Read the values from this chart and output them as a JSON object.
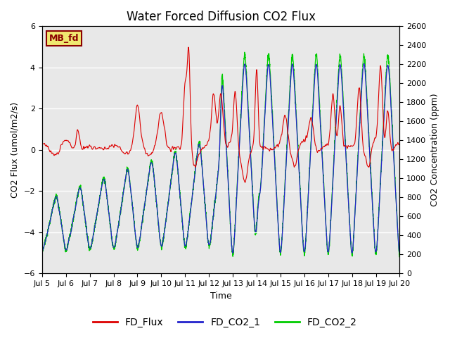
{
  "title": "Water Forced Diffusion CO2 Flux",
  "xlabel": "Time",
  "ylabel_left": "CO2 Flux (umol/m2/s)",
  "ylabel_right": "CO2 Concentration (ppm)",
  "ylim_left": [
    -6,
    6
  ],
  "ylim_right": [
    0,
    2600
  ],
  "yticks_left": [
    -6,
    -4,
    -2,
    0,
    2,
    4,
    6
  ],
  "yticks_right": [
    0,
    200,
    400,
    600,
    800,
    1000,
    1200,
    1400,
    1600,
    1800,
    2000,
    2200,
    2400,
    2600
  ],
  "xtick_labels": [
    "Jul 5",
    "Jul 6",
    "Jul 7",
    "Jul 8",
    "Jul 9",
    "Jul 10",
    "Jul 11",
    "Jul 12",
    "Jul 13",
    "Jul 14",
    "Jul 15",
    "Jul 16",
    "Jul 17",
    "Jul 18",
    "Jul 19",
    "Jul 20"
  ],
  "color_flux": "#dd0000",
  "color_co2_1": "#2222cc",
  "color_co2_2": "#00cc00",
  "legend_labels": [
    "FD_Flux",
    "FD_CO2_1",
    "FD_CO2_2"
  ],
  "bg_color": "#e8e8e8",
  "annotation_text": "MB_fd",
  "annotation_bg": "#f0e870",
  "annotation_border": "#8B0000",
  "title_fontsize": 12,
  "axis_label_fontsize": 9,
  "tick_fontsize": 8,
  "legend_fontsize": 10
}
